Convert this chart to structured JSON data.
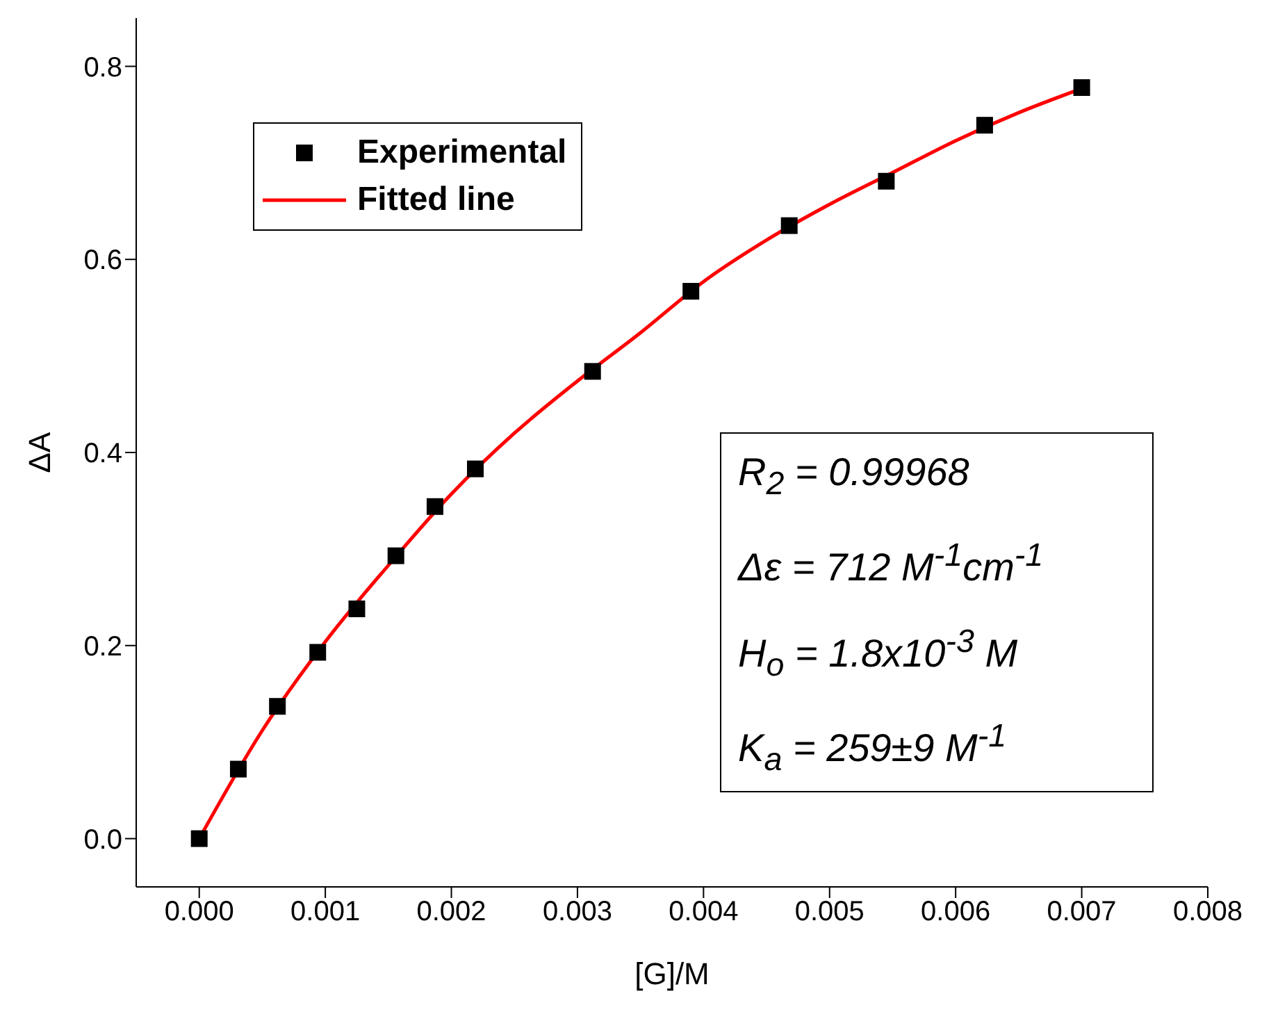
{
  "chart_data": {
    "type": "scatter",
    "xlabel": "[G]/M",
    "ylabel": "ΔA",
    "xlim": [
      -0.0005,
      0.008
    ],
    "xticks": [
      {
        "value": 0,
        "label": "0.000"
      },
      {
        "value": 0.001,
        "label": "0.001"
      },
      {
        "value": 0.002,
        "label": "0.002"
      },
      {
        "value": 0.003,
        "label": "0.003"
      },
      {
        "value": 0.004,
        "label": "0.004"
      },
      {
        "value": 0.005,
        "label": "0.005"
      },
      {
        "value": 0.006,
        "label": "0.006"
      },
      {
        "value": 0.007,
        "label": "0.007"
      },
      {
        "value": 0.008,
        "label": "0.008"
      }
    ],
    "ylim": [
      -0.05,
      0.85
    ],
    "yticks": [
      {
        "value": 0,
        "label": "0.0"
      },
      {
        "value": 0.2,
        "label": "0.2"
      },
      {
        "value": 0.4,
        "label": "0.4"
      },
      {
        "value": 0.6,
        "label": "0.6"
      },
      {
        "value": 0.8,
        "label": "0.8"
      }
    ],
    "series": [
      {
        "name": "Experimental",
        "marker": "square",
        "color": "#000000",
        "x": [
          0,
          0.00031,
          0.00062,
          0.00094,
          0.00125,
          0.00156,
          0.00187,
          0.00219,
          0.00312,
          0.0039,
          0.00468,
          0.00545,
          0.00623,
          0.007
        ],
        "values": [
          0,
          0.072,
          0.137,
          0.193,
          0.238,
          0.293,
          0.344,
          0.383,
          0.484,
          0.567,
          0.635,
          0.681,
          0.739,
          0.778
        ]
      },
      {
        "name": "Fitted line",
        "type": "line",
        "marker": "none",
        "line_style": "solid",
        "color": "#ff0000",
        "x": [
          0,
          0.0005,
          0.001,
          0.0015,
          0.002,
          0.0025,
          0.003,
          0.0035,
          0.004,
          0.0045,
          0.005,
          0.0055,
          0.006,
          0.0065,
          0.007
        ],
        "values": [
          0,
          0.112,
          0.204,
          0.283,
          0.357,
          0.42,
          0.474,
          0.524,
          0.577,
          0.62,
          0.657,
          0.69,
          0.723,
          0.752,
          0.777
        ]
      }
    ],
    "legend": "top left",
    "grid": false,
    "annotations": [
      "R$_{2}$ = 0.99968",
      "Δε = 712 M$^{-1}$cm$^{-1}$",
      "H$_{o}$ = 1.8x10$^{-3}$ M",
      "K$_{a}$ = 259±9 M$^{-1}$"
    ]
  }
}
